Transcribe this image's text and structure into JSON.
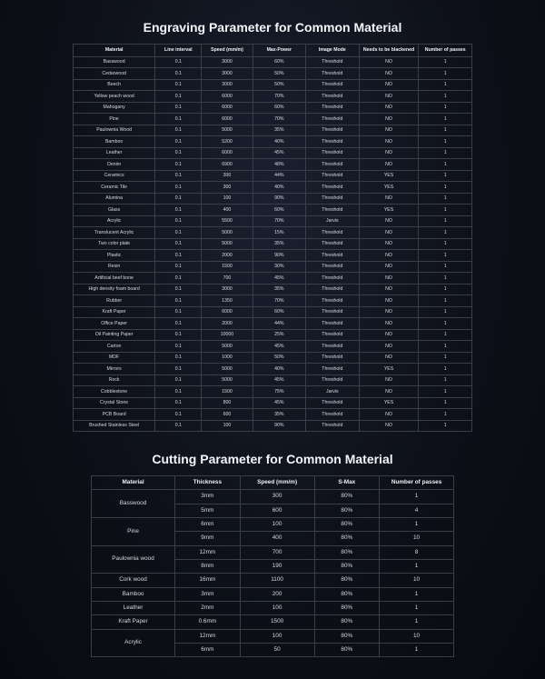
{
  "engraving": {
    "title": "Engraving Parameter for Common Material",
    "columns": [
      "Material",
      "Line interval",
      "Speed (mm/m)",
      "Max-Power",
      "Image Mode",
      "Needs to be blackened",
      "Number of passes"
    ],
    "col_widths": [
      "74px",
      "42px",
      "46px",
      "48px",
      "48px",
      "54px",
      "48px"
    ],
    "rows": [
      [
        "Basswood",
        "0.1",
        "3000",
        "60%",
        "Threshold",
        "NO",
        "1"
      ],
      [
        "Cedarwood",
        "0.1",
        "3000",
        "50%",
        "Threshold",
        "NO",
        "1"
      ],
      [
        "Beech",
        "0.1",
        "3000",
        "50%",
        "Threshold",
        "NO",
        "1"
      ],
      [
        "Yellow peach wood",
        "0.1",
        "6000",
        "70%",
        "Threshold",
        "NO",
        "1"
      ],
      [
        "Mahogany",
        "0.1",
        "6000",
        "60%",
        "Threshold",
        "NO",
        "1"
      ],
      [
        "Pine",
        "0.1",
        "6000",
        "70%",
        "Threshold",
        "NO",
        "1"
      ],
      [
        "Paulownia Wood",
        "0.1",
        "5000",
        "35%",
        "Threshold",
        "NO",
        "1"
      ],
      [
        "Bamboo",
        "0.1",
        "5200",
        "40%",
        "Threshold",
        "NO",
        "1"
      ],
      [
        "Leather",
        "0.1",
        "6000",
        "45%",
        "Threshold",
        "NO",
        "1"
      ],
      [
        "Denim",
        "0.1",
        "6900",
        "48%",
        "Threshold",
        "NO",
        "1"
      ],
      [
        "Ceramics",
        "0.1",
        "300",
        "44%",
        "Threshold",
        "YES",
        "1"
      ],
      [
        "Ceramic Tile",
        "0.1",
        "300",
        "40%",
        "Threshold",
        "YES",
        "1"
      ],
      [
        "Alumina",
        "0.1",
        "100",
        "90%",
        "Threshold",
        "NO",
        "1"
      ],
      [
        "Glass",
        "0.1",
        "400",
        "60%",
        "Threshold",
        "YES",
        "1"
      ],
      [
        "Acrylic",
        "0.1",
        "5500",
        "70%",
        "Jarvis",
        "NO",
        "1"
      ],
      [
        "Translucent Acrylic",
        "0.1",
        "5000",
        "15%",
        "Threshold",
        "NO",
        "1"
      ],
      [
        "Two color plate",
        "0.1",
        "5000",
        "35%",
        "Threshold",
        "NO",
        "1"
      ],
      [
        "Plastic",
        "0.1",
        "2000",
        "90%",
        "Threshold",
        "NO",
        "1"
      ],
      [
        "Resin",
        "0.1",
        "1500",
        "30%",
        "Threshold",
        "NO",
        "1"
      ],
      [
        "Artificial beef bone",
        "0.1",
        "700",
        "45%",
        "Threshold",
        "NO",
        "1"
      ],
      [
        "High density foam board",
        "0.1",
        "3000",
        "35%",
        "Threshold",
        "NO",
        "1"
      ],
      [
        "Rubber",
        "0.1",
        "1350",
        "70%",
        "Threshold",
        "NO",
        "1"
      ],
      [
        "Kraft Paper",
        "0.1",
        "6000",
        "60%",
        "Threshold",
        "NO",
        "1"
      ],
      [
        "Office Paper",
        "0.1",
        "2000",
        "44%",
        "Threshold",
        "NO",
        "1"
      ],
      [
        "Oil Painting Paper",
        "0.1",
        "10000",
        "25%",
        "Threshold",
        "NO",
        "1"
      ],
      [
        "Carton",
        "0.1",
        "5000",
        "45%",
        "Threshold",
        "NO",
        "1"
      ],
      [
        "MDF",
        "0.1",
        "1000",
        "50%",
        "Threshold",
        "NO",
        "1"
      ],
      [
        "Mirrors",
        "0.1",
        "5000",
        "40%",
        "Threshold",
        "YES",
        "1"
      ],
      [
        "Rock",
        "0.1",
        "5000",
        "45%",
        "Threshold",
        "NO",
        "1"
      ],
      [
        "Cobblestone",
        "0.1",
        "1500",
        "75%",
        "Jarvis",
        "NO",
        "1"
      ],
      [
        "Crystal Stone",
        "0.1",
        "800",
        "45%",
        "Threshold",
        "YES",
        "1"
      ],
      [
        "PCB Board",
        "0.1",
        "600",
        "35%",
        "Threshold",
        "NO",
        "1"
      ],
      [
        "Brushed Stainless Steel",
        "0.1",
        "100",
        "90%",
        "Threshold",
        "NO",
        "1"
      ]
    ]
  },
  "cutting": {
    "title": "Cutting Parameter for Common Material",
    "columns": [
      "Material",
      "Thickness",
      "Speed (mm/m)",
      "S-Max",
      "Number of passes"
    ],
    "col_widths": [
      "90px",
      "70px",
      "80px",
      "70px",
      "80px"
    ],
    "rows": [
      {
        "material": "Basswood",
        "span": 2,
        "data": [
          [
            "3mm",
            "300",
            "80%",
            "1"
          ],
          [
            "5mm",
            "600",
            "80%",
            "4"
          ]
        ]
      },
      {
        "material": "Pine",
        "span": 2,
        "data": [
          [
            "6mm",
            "100",
            "80%",
            "1"
          ],
          [
            "9mm",
            "400",
            "80%",
            "10"
          ]
        ]
      },
      {
        "material": "Paulownia wood",
        "span": 2,
        "data": [
          [
            "12mm",
            "700",
            "80%",
            "8"
          ],
          [
            "8mm",
            "190",
            "80%",
            "1"
          ]
        ]
      },
      {
        "material": "Cork wood",
        "span": 1,
        "data": [
          [
            "16mm",
            "1100",
            "80%",
            "10"
          ]
        ]
      },
      {
        "material": "Bamboo",
        "span": 1,
        "data": [
          [
            "3mm",
            "200",
            "80%",
            "1"
          ]
        ]
      },
      {
        "material": "Leather",
        "span": 1,
        "data": [
          [
            "2mm",
            "100",
            "80%",
            "1"
          ]
        ]
      },
      {
        "material": "Kraft Paper",
        "span": 1,
        "data": [
          [
            "0.6mm",
            "1500",
            "80%",
            "1"
          ]
        ]
      },
      {
        "material": "Acrylic",
        "span": 2,
        "data": [
          [
            "12mm",
            "100",
            "80%",
            "10"
          ],
          [
            "6mm",
            "50",
            "80%",
            "1"
          ]
        ]
      }
    ]
  }
}
